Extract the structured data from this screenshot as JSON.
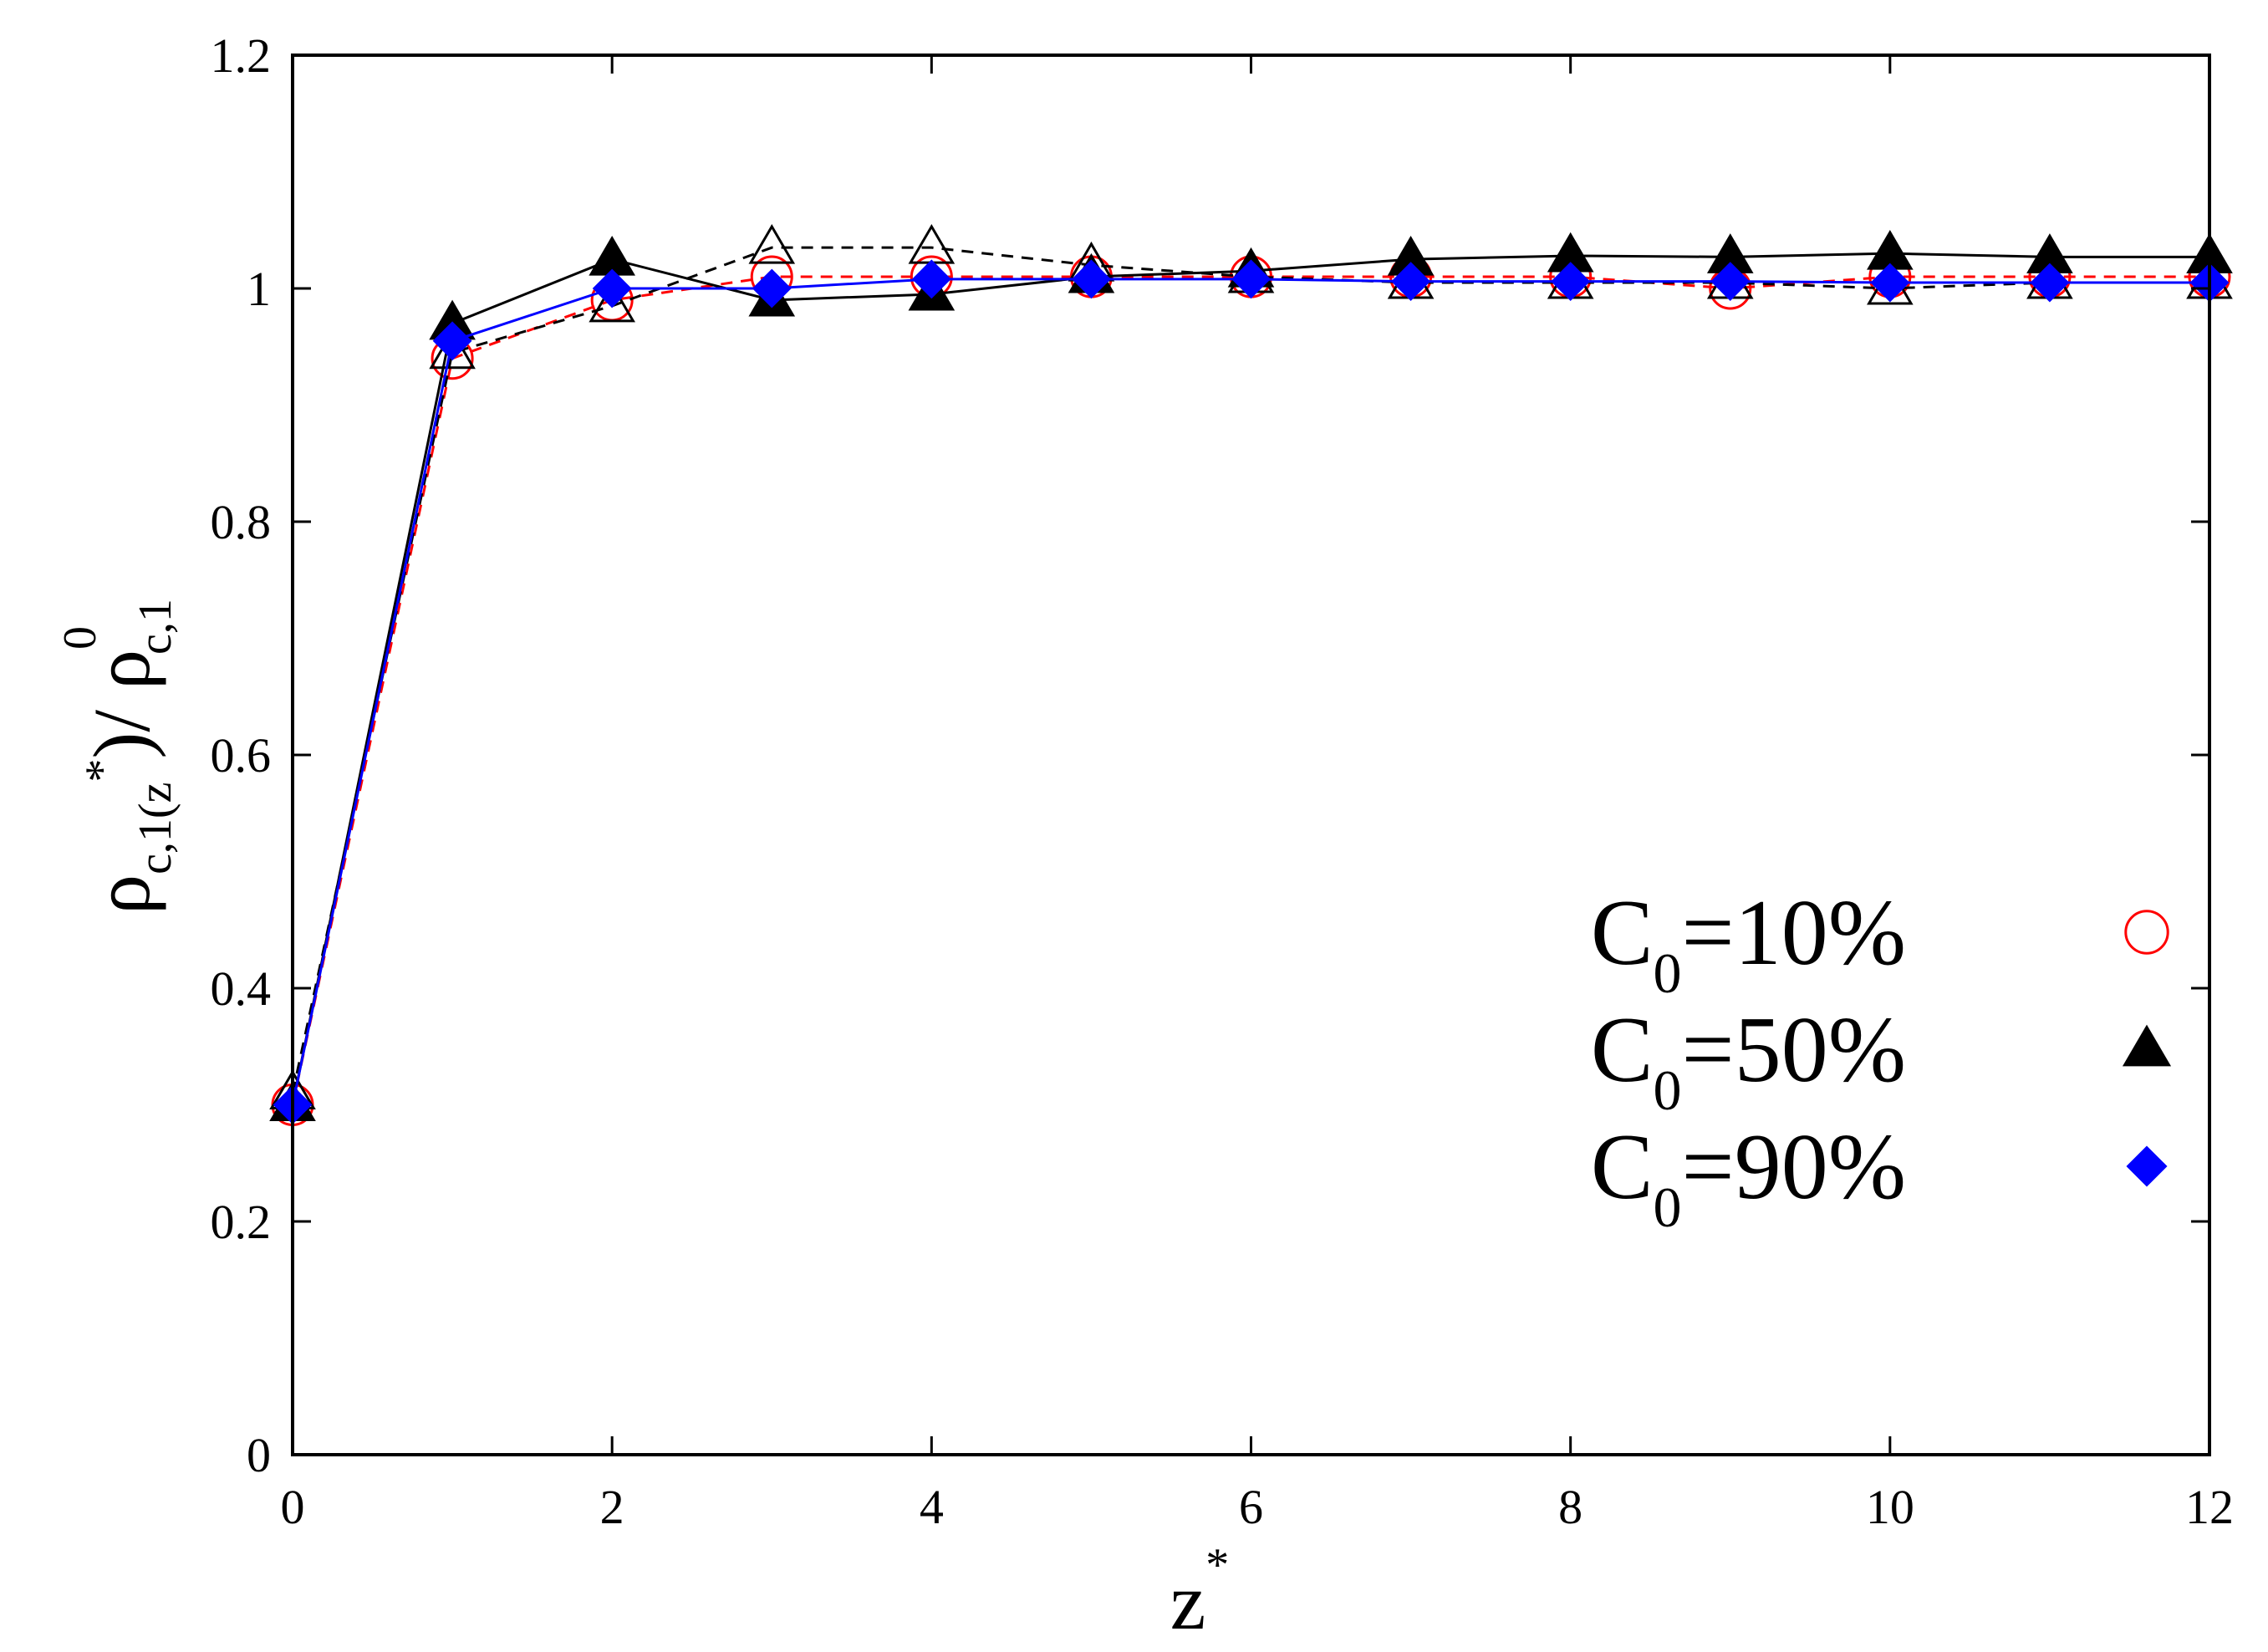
{
  "chart_data": {
    "type": "line",
    "xlabel": {
      "main": "z",
      "sup": "*"
    },
    "ylabel": {
      "rho1": "ρ",
      "sub1": "c,1(z",
      "sup1": "*",
      "mid": ")/ ρ",
      "sup2": "0",
      "sub2": "c,1"
    },
    "xlim": [
      0,
      12
    ],
    "ylim": [
      0,
      1.2
    ],
    "x_ticks": [
      "0",
      "2",
      "4",
      "6",
      "8",
      "10",
      "12"
    ],
    "y_ticks": [
      "0",
      "0.2",
      "0.4",
      "0.6",
      "0.8",
      "1",
      "1.2"
    ],
    "grid": false,
    "legend_position": "bottom-right",
    "legend": [
      {
        "prefix": "C",
        "sub": "0",
        "suffix": "=10%",
        "marker": "open-circle",
        "color": "#ff0000"
      },
      {
        "prefix": "C",
        "sub": "0",
        "suffix": "=50%",
        "marker": "filled-triangle",
        "color": "#000000"
      },
      {
        "prefix": "C",
        "sub": "0",
        "suffix": "=90%",
        "marker": "filled-diamond",
        "color": "#0000ff"
      }
    ],
    "series": [
      {
        "name": "C0=10%",
        "marker": "open-circle",
        "line": "dashed",
        "color": "#ff0000",
        "x": [
          0,
          1,
          2,
          3,
          4,
          5,
          6,
          7,
          8,
          9,
          10,
          11,
          12
        ],
        "y": [
          0.3,
          0.94,
          0.99,
          1.01,
          1.01,
          1.01,
          1.01,
          1.01,
          1.01,
          1.0,
          1.01,
          1.01,
          1.01
        ]
      },
      {
        "name": "C0=50%",
        "marker": "filled-triangle",
        "line": "solid",
        "color": "#000000",
        "x": [
          0,
          1,
          2,
          3,
          4,
          5,
          6,
          7,
          8,
          9,
          10,
          11,
          12
        ],
        "y": [
          0.3,
          0.97,
          1.025,
          0.99,
          0.995,
          1.01,
          1.015,
          1.025,
          1.028,
          1.027,
          1.03,
          1.027,
          1.027
        ]
      },
      {
        "name": "",
        "marker": "open-triangle",
        "line": "dashed",
        "color": "#000000",
        "x": [
          0,
          1,
          2,
          3,
          4,
          5,
          6,
          7,
          8,
          9,
          10,
          11,
          12
        ],
        "y": [
          0.31,
          0.945,
          0.985,
          1.035,
          1.035,
          1.02,
          1.01,
          1.005,
          1.005,
          1.005,
          1.0,
          1.005,
          1.005
        ]
      },
      {
        "name": "C0=90%",
        "marker": "filled-diamond",
        "line": "solid",
        "color": "#0000ff",
        "x": [
          0,
          1,
          2,
          3,
          4,
          5,
          6,
          7,
          8,
          9,
          10,
          11,
          12
        ],
        "y": [
          0.3,
          0.955,
          1.0,
          1.0,
          1.008,
          1.008,
          1.008,
          1.006,
          1.006,
          1.006,
          1.005,
          1.005,
          1.005
        ]
      }
    ]
  }
}
